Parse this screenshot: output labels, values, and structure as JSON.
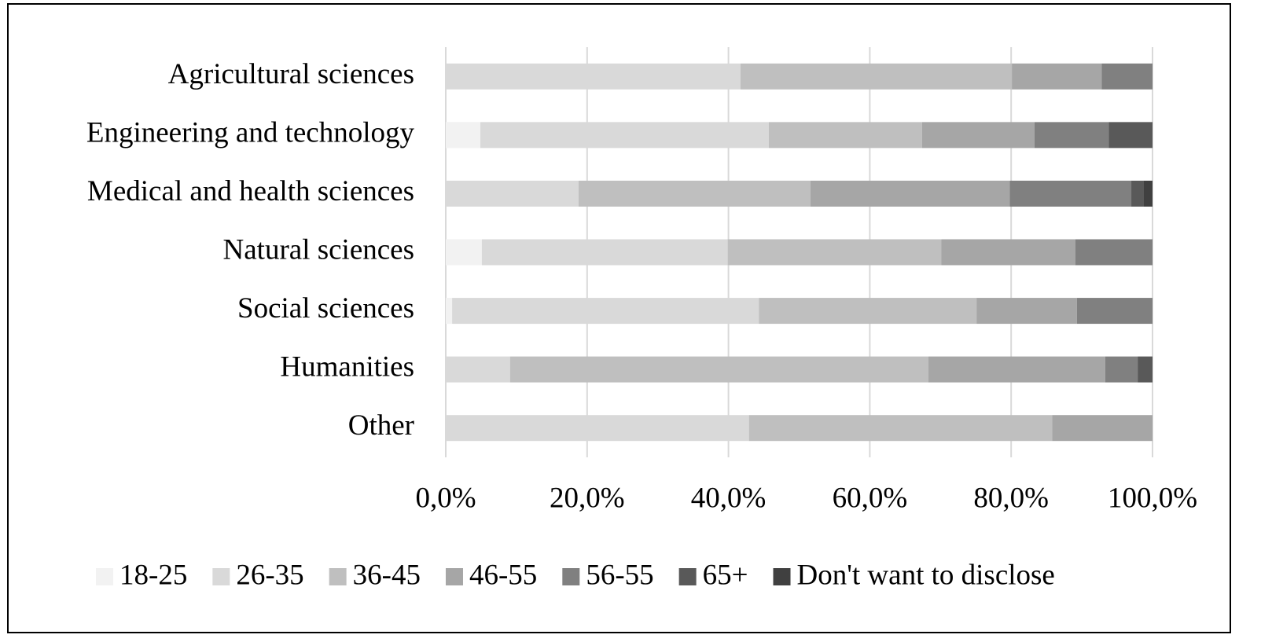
{
  "chart_data": {
    "type": "stacked-bar-horizontal",
    "categories": [
      "Agricultural sciences",
      "Engineering and technology",
      "Medical and health sciences",
      "Natural sciences",
      "Social sciences",
      "Humanities",
      "Other"
    ],
    "series": [
      {
        "name": "18-25",
        "color": "#f2f2f2",
        "values": [
          0,
          4.9,
          0,
          5.1,
          0.9,
          0,
          0
        ]
      },
      {
        "name": "26-35",
        "color": "#d9d9d9",
        "values": [
          41.7,
          40.8,
          18.8,
          34.8,
          43.4,
          9.1,
          42.9
        ]
      },
      {
        "name": "36-45",
        "color": "#bfbfbf",
        "values": [
          38.4,
          21.7,
          32.8,
          30.2,
          30.8,
          59.2,
          42.9
        ]
      },
      {
        "name": "46-55",
        "color": "#a6a6a6",
        "values": [
          12.7,
          15.9,
          28.2,
          19.0,
          14.2,
          25.0,
          14.2
        ]
      },
      {
        "name": "56-55",
        "color": "#808080",
        "values": [
          7.2,
          10.5,
          17.2,
          10.9,
          10.7,
          4.6,
          0
        ]
      },
      {
        "name": "65+",
        "color": "#595959",
        "values": [
          0,
          6.2,
          1.7,
          0,
          0,
          2.1,
          0
        ]
      },
      {
        "name": "Don't want to disclose",
        "color": "#404040",
        "values": [
          0,
          0,
          1.3,
          0,
          0,
          0,
          0
        ]
      }
    ],
    "xlim": [
      0,
      100
    ],
    "xticks": [
      {
        "value": 0,
        "label": "0,0%"
      },
      {
        "value": 20,
        "label": "20,0%"
      },
      {
        "value": 40,
        "label": "40,0%"
      },
      {
        "value": 60,
        "label": "60,0%"
      },
      {
        "value": 80,
        "label": "80,0%"
      },
      {
        "value": 100,
        "label": "100,0%"
      }
    ],
    "grid": true,
    "legend": "bottom"
  }
}
